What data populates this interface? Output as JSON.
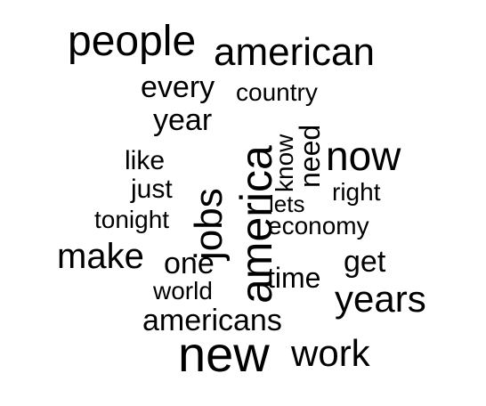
{
  "word_cloud": {
    "words": {
      "people": "people",
      "american": "american",
      "every": "every",
      "country": "country",
      "year": "year",
      "know": "know",
      "need": "need",
      "now": "now",
      "like": "like",
      "jobs": "jobs",
      "america": "america",
      "just": "just",
      "right": "right",
      "lets": "lets",
      "tonight": "tonight",
      "economy": "economy",
      "make": "make",
      "get": "get",
      "one": "one",
      "time": "time",
      "world": "world",
      "years": "years",
      "americans": "americans",
      "new": "new",
      "work": "work"
    },
    "text_color": "#000000",
    "background_color": "#ffffff"
  }
}
